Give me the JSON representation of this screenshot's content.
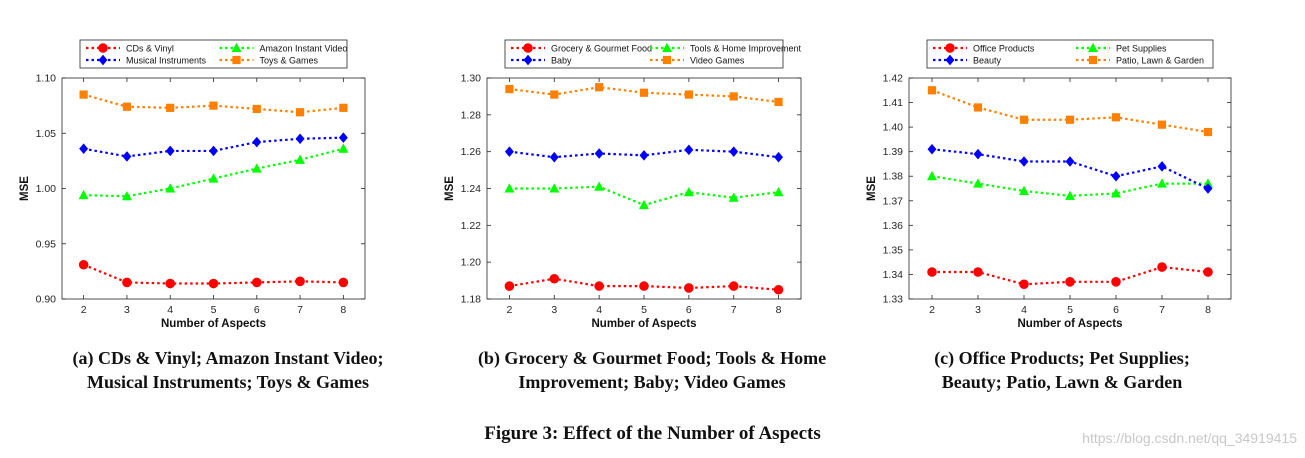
{
  "figure_caption": "Figure 3: Effect of the Number of Aspects",
  "watermark": "https://blog.csdn.net/qq_34919415",
  "series_styles": [
    {
      "color": "#ff0000",
      "marker": "circle"
    },
    {
      "color": "#00ff00",
      "marker": "triangle"
    },
    {
      "color": "#0000ff",
      "marker": "diamond"
    },
    {
      "color": "#ff8000",
      "marker": "square"
    }
  ],
  "chart_data": [
    {
      "type": "line",
      "caption_lines": [
        "(a) CDs & Vinyl; Amazon Instant Video;",
        "Musical Instruments; Toys & Games"
      ],
      "xlabel": "Number of Aspects",
      "ylabel": "MSE",
      "x": [
        2,
        3,
        4,
        5,
        6,
        7,
        8
      ],
      "xlim": [
        1.5,
        8.5
      ],
      "ylim": [
        0.9,
        1.1
      ],
      "yticks": [
        "0.90",
        "0.95",
        "1.00",
        "1.05",
        "1.10"
      ],
      "grid": false,
      "legend_position": "top",
      "series": [
        {
          "name": "CDs & Vinyl",
          "values": [
            0.931,
            0.915,
            0.914,
            0.914,
            0.915,
            0.916,
            0.915
          ]
        },
        {
          "name": "Amazon Instant Video",
          "values": [
            0.994,
            0.993,
            1.0,
            1.009,
            1.018,
            1.026,
            1.036
          ]
        },
        {
          "name": "Musical Instruments",
          "values": [
            1.036,
            1.029,
            1.034,
            1.034,
            1.042,
            1.045,
            1.046
          ]
        },
        {
          "name": "Toys & Games",
          "values": [
            1.085,
            1.074,
            1.073,
            1.075,
            1.072,
            1.069,
            1.073
          ]
        }
      ]
    },
    {
      "type": "line",
      "caption_lines": [
        "(b) Grocery & Gourmet Food; Tools & Home",
        "Improvement; Baby; Video Games"
      ],
      "xlabel": "Number of Aspects",
      "ylabel": "MSE",
      "x": [
        2,
        3,
        4,
        5,
        6,
        7,
        8
      ],
      "xlim": [
        1.5,
        8.5
      ],
      "ylim": [
        1.18,
        1.3
      ],
      "yticks": [
        "1.18",
        "1.20",
        "1.22",
        "1.24",
        "1.26",
        "1.28",
        "1.30"
      ],
      "grid": false,
      "legend_position": "top",
      "series": [
        {
          "name": "Grocery & Gourmet Food",
          "values": [
            1.187,
            1.191,
            1.187,
            1.187,
            1.186,
            1.187,
            1.185
          ]
        },
        {
          "name": "Tools & Home Improvement",
          "values": [
            1.24,
            1.24,
            1.241,
            1.231,
            1.238,
            1.235,
            1.238
          ]
        },
        {
          "name": "Baby",
          "values": [
            1.26,
            1.257,
            1.259,
            1.258,
            1.261,
            1.26,
            1.257
          ]
        },
        {
          "name": "Video Games",
          "values": [
            1.294,
            1.291,
            1.295,
            1.292,
            1.291,
            1.29,
            1.287
          ]
        }
      ]
    },
    {
      "type": "line",
      "caption_lines": [
        "(c) Office Products; Pet Supplies;",
        "Beauty; Patio, Lawn & Garden"
      ],
      "xlabel": "Number of Aspects",
      "ylabel": "MSE",
      "x": [
        2,
        3,
        4,
        5,
        6,
        7,
        8
      ],
      "xlim": [
        1.5,
        8.5
      ],
      "ylim": [
        1.33,
        1.42
      ],
      "yticks": [
        "1.33",
        "1.34",
        "1.35",
        "1.36",
        "1.37",
        "1.38",
        "1.39",
        "1.40",
        "1.41",
        "1.42"
      ],
      "grid": false,
      "legend_position": "top",
      "series": [
        {
          "name": "Office Products",
          "values": [
            1.341,
            1.341,
            1.336,
            1.337,
            1.337,
            1.343,
            1.341
          ]
        },
        {
          "name": "Pet Supplies",
          "values": [
            1.38,
            1.377,
            1.374,
            1.372,
            1.373,
            1.377,
            1.377
          ]
        },
        {
          "name": "Beauty",
          "values": [
            1.391,
            1.389,
            1.386,
            1.386,
            1.38,
            1.384,
            1.375
          ]
        },
        {
          "name": "Patio, Lawn & Garden",
          "values": [
            1.415,
            1.408,
            1.403,
            1.403,
            1.404,
            1.401,
            1.398
          ]
        }
      ]
    }
  ]
}
